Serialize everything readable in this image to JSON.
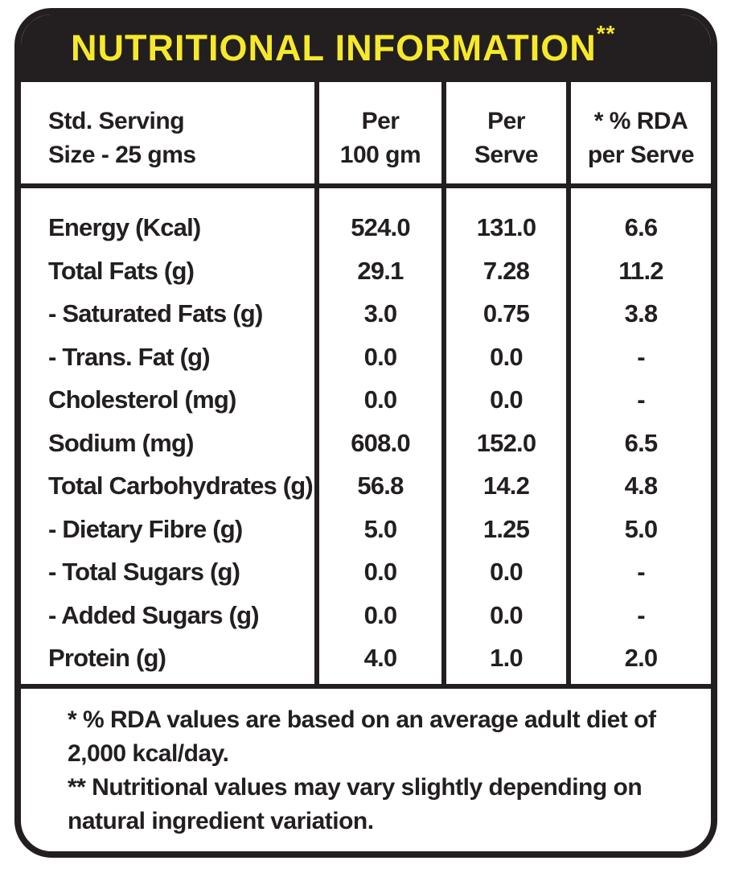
{
  "header": {
    "title": "NUTRITIONAL INFORMATION",
    "title_mark": "**"
  },
  "columns": {
    "serving_line1": "Std. Serving",
    "serving_line2": "Size - 25 gms",
    "col1_line1": "Per",
    "col1_line2": "100 gm",
    "col2_line1": "Per",
    "col2_line2": "Serve",
    "col3_line1": "* % RDA",
    "col3_line2": "per Serve"
  },
  "rows": [
    {
      "label": "Energy (Kcal)",
      "per100": "524.0",
      "perServe": "131.0",
      "rda": "6.6"
    },
    {
      "label": "Total Fats (g)",
      "per100": "29.1",
      "perServe": "7.28",
      "rda": "11.2"
    },
    {
      "label": "- Saturated Fats (g)",
      "per100": "3.0",
      "perServe": "0.75",
      "rda": "3.8"
    },
    {
      "label": "- Trans. Fat (g)",
      "per100": "0.0",
      "perServe": "0.0",
      "rda": "-"
    },
    {
      "label": "Cholesterol (mg)",
      "per100": "0.0",
      "perServe": "0.0",
      "rda": "-"
    },
    {
      "label": "Sodium (mg)",
      "per100": "608.0",
      "perServe": "152.0",
      "rda": "6.5"
    },
    {
      "label": "Total Carbohydrates (g)",
      "per100": "56.8",
      "perServe": "14.2",
      "rda": "4.8"
    },
    {
      "label": "- Dietary Fibre (g)",
      "per100": "5.0",
      "perServe": "1.25",
      "rda": "5.0"
    },
    {
      "label": "- Total Sugars (g)",
      "per100": "0.0",
      "perServe": "0.0",
      "rda": "-"
    },
    {
      "label": "- Added Sugars (g)",
      "per100": "0.0",
      "perServe": "0.0",
      "rda": "-"
    },
    {
      "label": "Protein (g)",
      "per100": "4.0",
      "perServe": "1.0",
      "rda": "2.0"
    }
  ],
  "notes": {
    "note1": "* % RDA values are based on an average adult diet of 2,000 kcal/day.",
    "note2": "** Nutritional values may vary slightly depending on natural ingredient variation."
  },
  "colors": {
    "dark": "#231f20",
    "accent": "#f6e92b",
    "background": "#ffffff"
  }
}
